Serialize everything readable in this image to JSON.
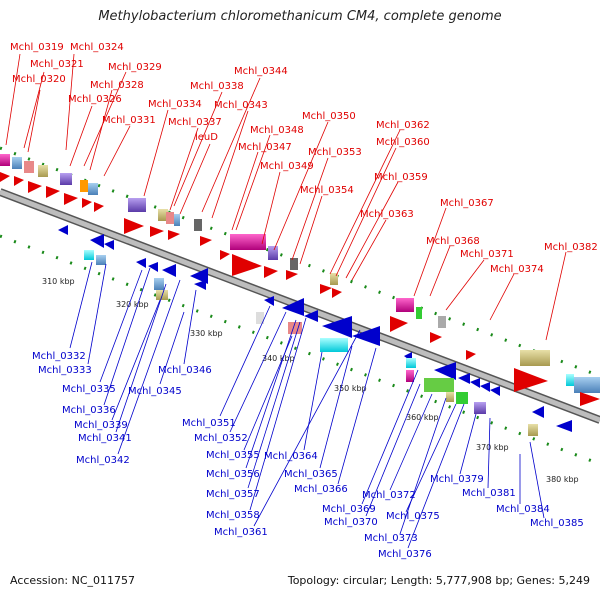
{
  "title": "Methylobacterium chloromethanicum CM4, complete genome",
  "footer": {
    "accession": "Accession: NC_011757",
    "stats": "Topology: circular; Length: 5,777,908 bp; Genes: 5,249"
  },
  "kbp_ticks": [
    "310 kbp",
    "320 kbp",
    "330 kbp",
    "340 kbp",
    "350 kbp",
    "360 kbp",
    "370 kbp",
    "380 kbp"
  ],
  "forward_genes": [
    "Mchl_0319",
    "Mchl_0324",
    "Mchl_0321",
    "Mchl_0329",
    "Mchl_0320",
    "Mchl_0328",
    "Mchl_0326",
    "Mchl_0331",
    "Mchl_0344",
    "Mchl_0338",
    "Mchl_0334",
    "Mchl_0343",
    "Mchl_0337",
    "leuD",
    "Mchl_0350",
    "Mchl_0348",
    "Mchl_0347",
    "Mchl_0349",
    "Mchl_0362",
    "Mchl_0360",
    "Mchl_0353",
    "Mchl_0359",
    "Mchl_0354",
    "Mchl_0363",
    "Mchl_0367",
    "Mchl_0368",
    "Mchl_0371",
    "Mchl_0374",
    "Mchl_0382"
  ],
  "reverse_genes": [
    "Mchl_0332",
    "Mchl_0333",
    "Mchl_0335",
    "Mchl_0336",
    "Mchl_0339",
    "Mchl_0341",
    "Mchl_0342",
    "Mchl_0345",
    "Mchl_0346",
    "Mchl_0351",
    "Mchl_0352",
    "Mchl_0355",
    "Mchl_0356",
    "Mchl_0357",
    "Mchl_0358",
    "Mchl_0361",
    "Mchl_0364",
    "Mchl_0365",
    "Mchl_0366",
    "Mchl_0369",
    "Mchl_0370",
    "Mchl_0372",
    "Mchl_0373",
    "Mchl_0375",
    "Mchl_0376",
    "Mchl_0379",
    "Mchl_0381",
    "Mchl_0384",
    "Mchl_0385"
  ],
  "colors": {
    "forward": "#e00000",
    "reverse": "#0000cc",
    "backbone": "#8a8a8a",
    "tick": "#1a8a1a"
  }
}
